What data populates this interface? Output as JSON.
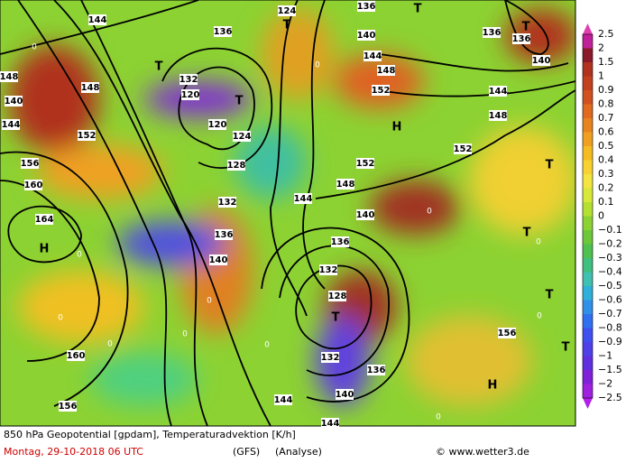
{
  "map_labels": [
    "144",
    "136",
    "124",
    "136",
    "T",
    "T",
    "T",
    "136",
    "136",
    "140",
    "144",
    "148",
    "152",
    "144",
    "148",
    "140",
    "T",
    "T",
    "132",
    "120",
    "120",
    "124",
    "128",
    "H",
    "152",
    "148",
    "140",
    "144",
    "148",
    "152",
    "156",
    "160",
    "164",
    "H",
    "132",
    "136",
    "140",
    "144",
    "148",
    "152",
    "140",
    "136",
    "132",
    "128",
    "T",
    "132",
    "136",
    "140",
    "144",
    "144",
    "160",
    "156",
    "T",
    "T",
    "T",
    "T",
    "H",
    "156"
  ],
  "zero_labels": [
    "0",
    "0",
    "0",
    "0",
    "0",
    "0",
    "0",
    "0",
    "0",
    "0",
    "0",
    "0"
  ],
  "colorbar": {
    "labels": [
      "2.5",
      "2",
      "1.5",
      "1",
      "0.9",
      "0.8",
      "0.7",
      "0.6",
      "0.5",
      "0.4",
      "0.3",
      "0.2",
      "0.1",
      "0",
      "−0.1",
      "−0.2",
      "−0.3",
      "−0.4",
      "−0.5",
      "−0.6",
      "−0.7",
      "−0.8",
      "−0.9",
      "−1",
      "−1.5",
      "−2",
      "−2.5"
    ]
  },
  "footer": {
    "title": "850 hPa Geopotential [gpdam], Temperaturadvektion [K/h]",
    "date": "Montag, 29-10-2018  06 UTC",
    "model": "(GFS)",
    "mode": "(Analyse)",
    "source": "© www.wetter3.de"
  }
}
